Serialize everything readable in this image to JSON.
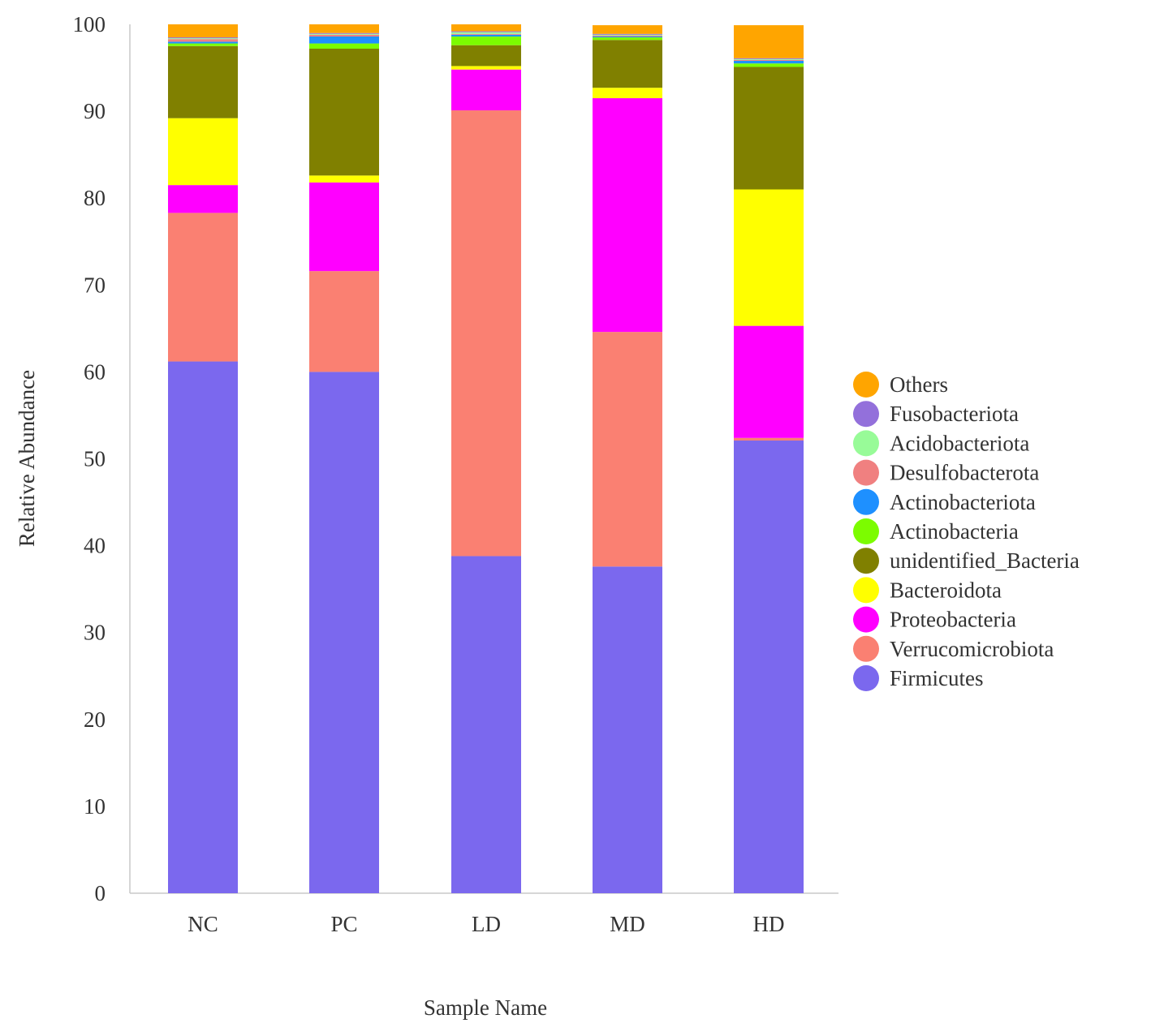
{
  "chart_data": {
    "type": "stacked-bar",
    "title": "",
    "xlabel": "Sample Name",
    "ylabel": "Relative Abundance",
    "ylim": [
      0,
      100
    ],
    "yticks": [
      0,
      10,
      20,
      30,
      40,
      50,
      60,
      70,
      80,
      90,
      100
    ],
    "categories": [
      "NC",
      "PC",
      "LD",
      "MD",
      "HD"
    ],
    "legend_position": "right",
    "series": [
      {
        "name": "Firmicutes",
        "color": "#7B68EE",
        "values": [
          61.2,
          60.0,
          38.8,
          37.6,
          52.1
        ]
      },
      {
        "name": "Verrucomicrobiota",
        "color": "#FA8072",
        "values": [
          17.1,
          11.6,
          51.3,
          27.0,
          0.3
        ]
      },
      {
        "name": "Proteobacteria",
        "color": "#FF00FF",
        "values": [
          3.2,
          10.2,
          4.7,
          26.9,
          12.9
        ]
      },
      {
        "name": "Bacteroidota",
        "color": "#FFFF00",
        "values": [
          7.7,
          0.8,
          0.4,
          1.2,
          15.7
        ]
      },
      {
        "name": "unidentified_Bacteria",
        "color": "#808000",
        "values": [
          8.3,
          14.6,
          2.4,
          5.5,
          14.1
        ]
      },
      {
        "name": "Actinobacteria",
        "color": "#7CFC00",
        "values": [
          0.3,
          0.6,
          1.0,
          0.3,
          0.4
        ]
      },
      {
        "name": "Actinobacteriota",
        "color": "#1E90FF",
        "values": [
          0.2,
          0.8,
          0.2,
          0.1,
          0.3
        ]
      },
      {
        "name": "Desulfobacterota",
        "color": "#F08080",
        "values": [
          0.3,
          0.2,
          0.1,
          0.1,
          0.1
        ]
      },
      {
        "name": "Acidobacteriota",
        "color": "#98FB98",
        "values": [
          0.1,
          0.1,
          0.2,
          0.1,
          0.1
        ]
      },
      {
        "name": "Fusobacteriota",
        "color": "#9370DB",
        "values": [
          0.1,
          0.1,
          0.1,
          0.1,
          0.1
        ]
      },
      {
        "name": "Others",
        "color": "#FFA500",
        "values": [
          1.5,
          1.0,
          0.8,
          1.0,
          3.8
        ]
      }
    ]
  }
}
